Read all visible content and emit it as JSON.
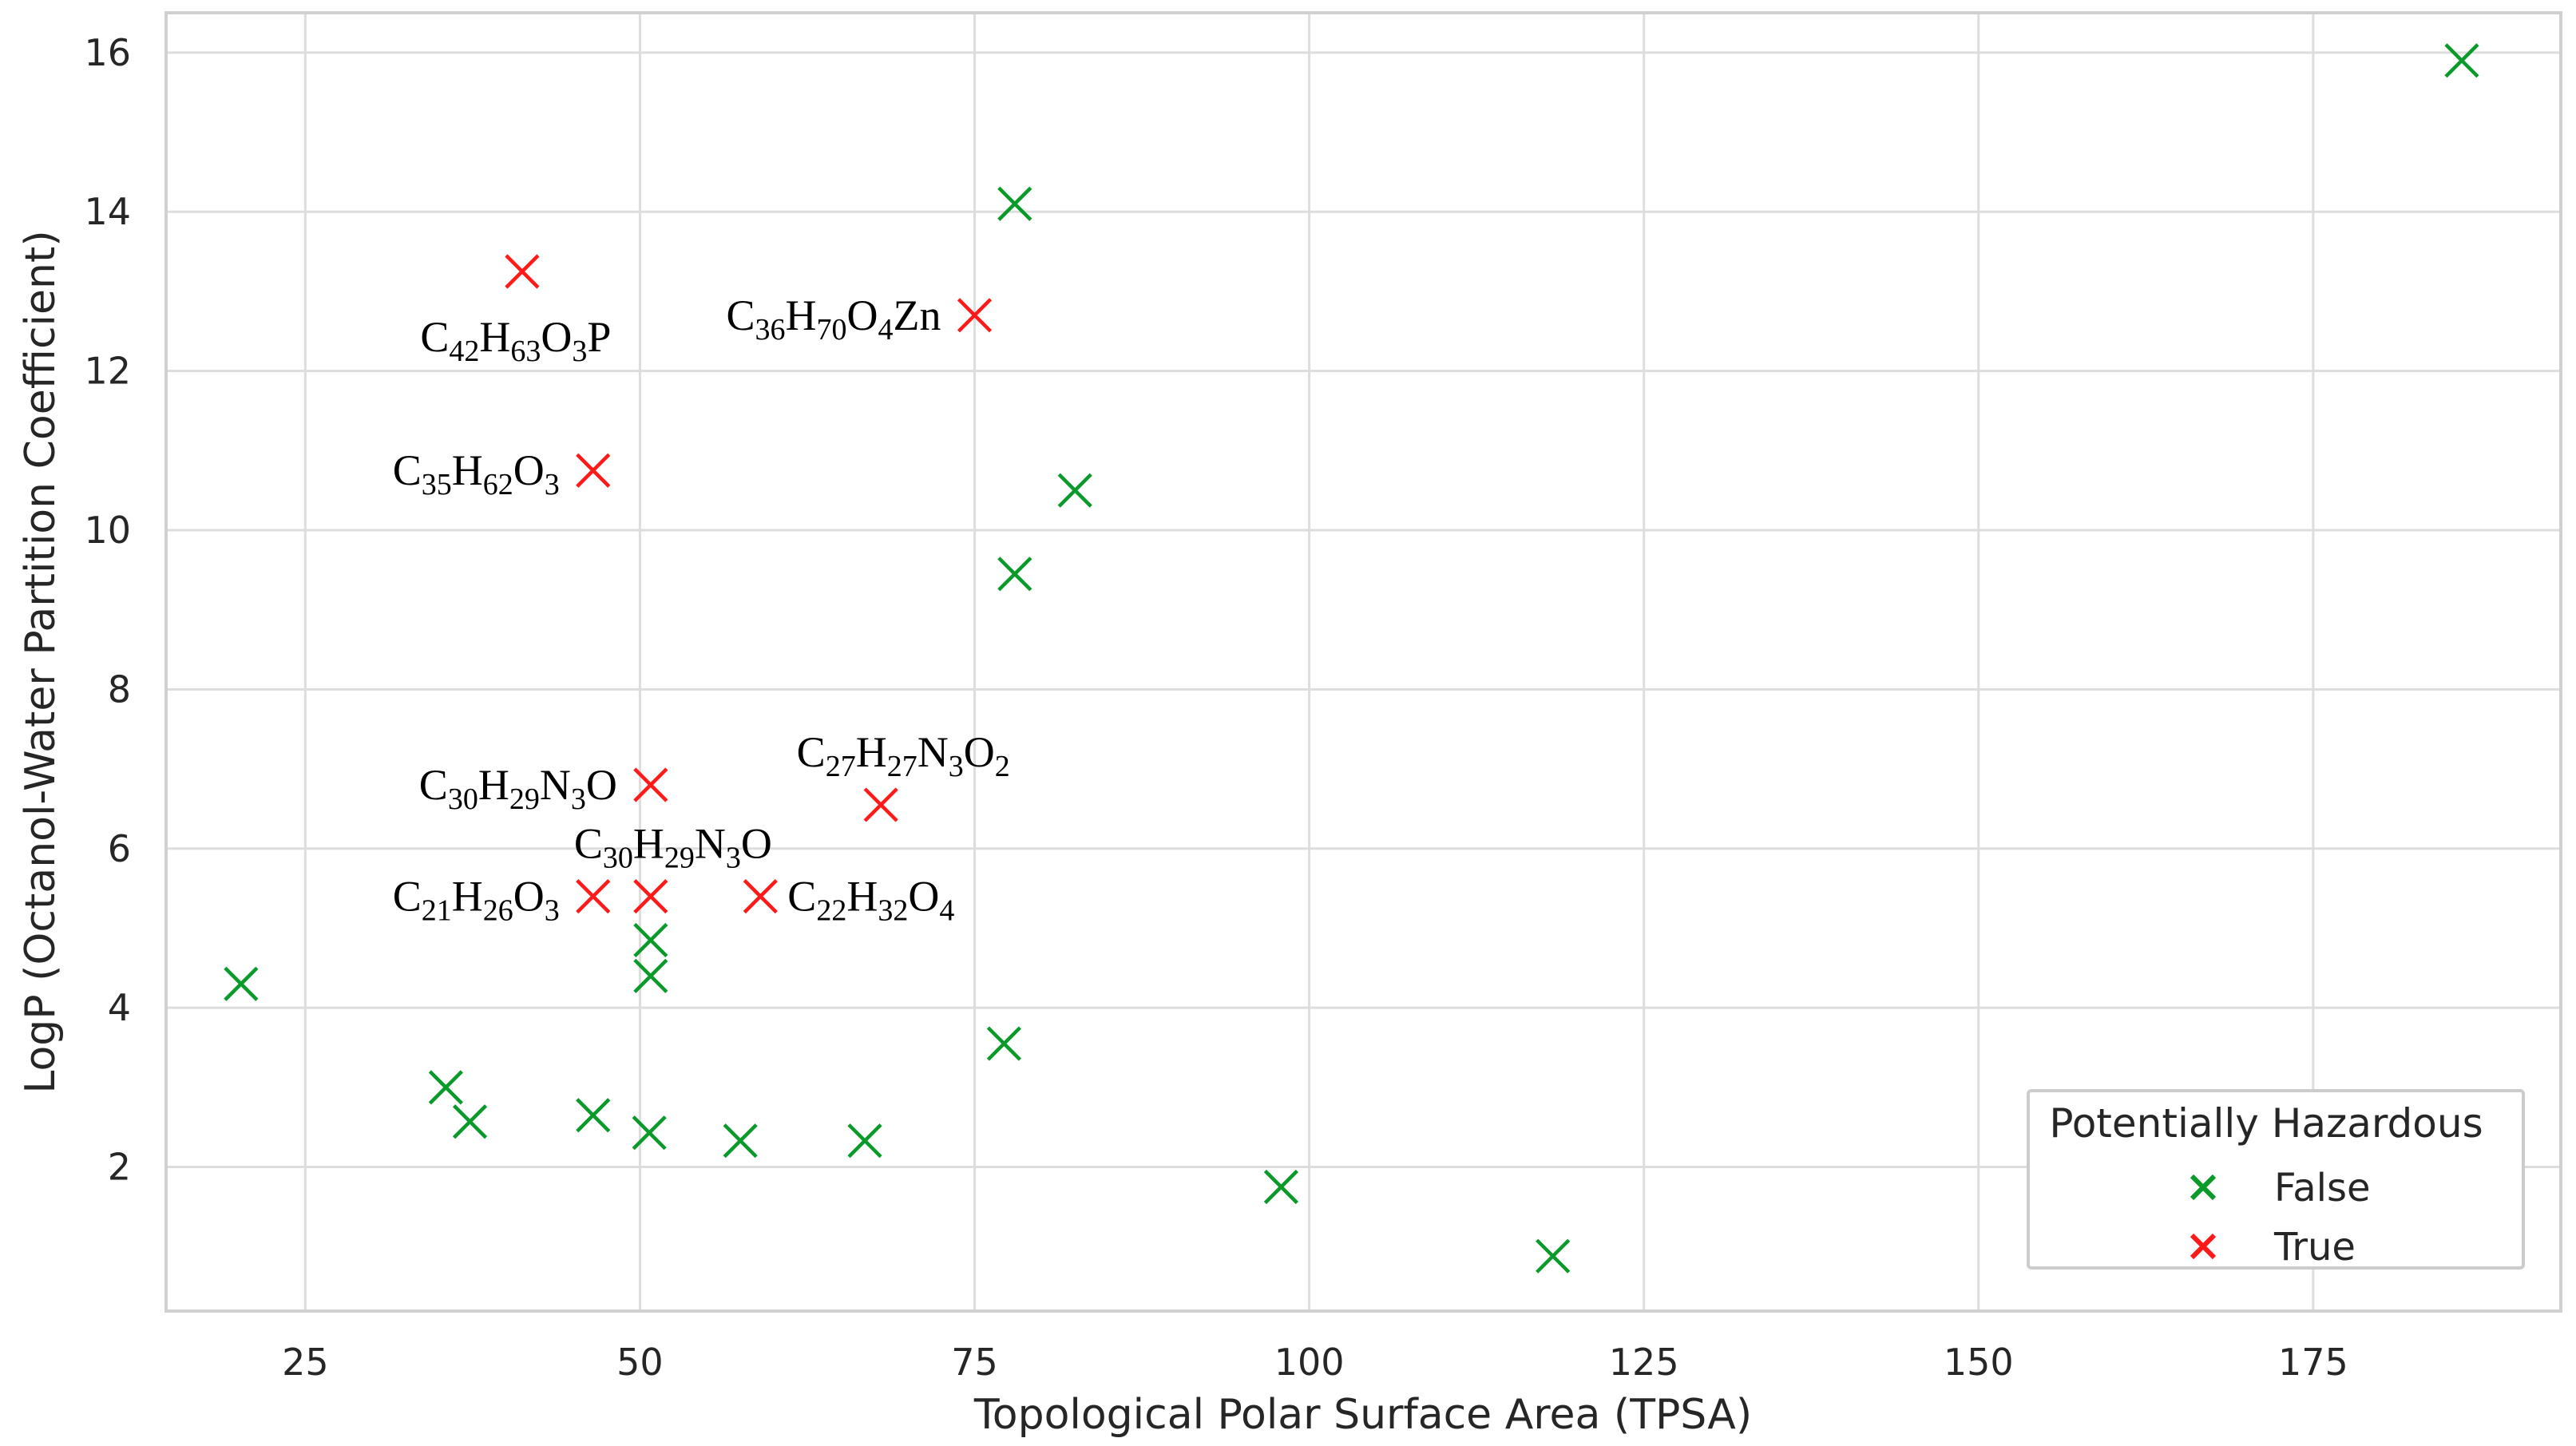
{
  "chart_data": {
    "type": "scatter",
    "xlabel": "Topological Polar Surface Area (TPSA)",
    "ylabel": "LogP (Octanol-Water Partition Coefficient)",
    "xlim": [
      14.6,
      193.5
    ],
    "ylim": [
      0.19,
      16.5
    ],
    "xticks": [
      25,
      50,
      75,
      100,
      125,
      150,
      175
    ],
    "yticks": [
      2,
      4,
      6,
      8,
      10,
      12,
      14,
      16
    ],
    "xtick_labels": [
      "25",
      "50",
      "75",
      "100",
      "125",
      "150",
      "175"
    ],
    "ytick_labels": [
      "2",
      "4",
      "6",
      "8",
      "10",
      "12",
      "14",
      "16"
    ],
    "grid": true,
    "marker": "x",
    "legend": {
      "title": "Potentially Hazardous",
      "location": "lower-right",
      "entries": [
        {
          "label": "False",
          "color": "#0a9a2a"
        },
        {
          "label": "True",
          "color": "#ff1a1a"
        }
      ]
    },
    "series": [
      {
        "name": "False",
        "color": "#0a9a2a",
        "points": [
          [
            20.2,
            4.3
          ],
          [
            35.5,
            3.0
          ],
          [
            37.3,
            2.57
          ],
          [
            46.5,
            2.65
          ],
          [
            50.7,
            2.43
          ],
          [
            57.5,
            2.33
          ],
          [
            66.8,
            2.33
          ],
          [
            50.8,
            4.85
          ],
          [
            50.8,
            4.4
          ],
          [
            77.2,
            3.55
          ],
          [
            78.0,
            9.45
          ],
          [
            78.0,
            14.1
          ],
          [
            82.5,
            10.5
          ],
          [
            97.9,
            1.75
          ],
          [
            118.2,
            0.88
          ],
          [
            186.1,
            15.9
          ]
        ]
      },
      {
        "name": "True",
        "color": "#ff1a1a",
        "points": [
          [
            41.2,
            13.25
          ],
          [
            46.5,
            10.75
          ],
          [
            75.0,
            12.7
          ],
          [
            50.8,
            6.8
          ],
          [
            68.0,
            6.55
          ],
          [
            46.5,
            5.4
          ],
          [
            50.8,
            5.4
          ],
          [
            59.0,
            5.4
          ]
        ],
        "annotations": [
          {
            "formula": [
              [
                "C",
                "42"
              ],
              [
                "H",
                "63"
              ],
              [
                "O",
                "3"
              ],
              [
                "P",
                ""
              ]
            ],
            "point_index": 0,
            "anchor": "below-left"
          },
          {
            "formula": [
              [
                "C",
                "35"
              ],
              [
                "H",
                "62"
              ],
              [
                "O",
                "3"
              ]
            ],
            "point_index": 1,
            "anchor": "left"
          },
          {
            "formula": [
              [
                "C",
                "36"
              ],
              [
                "H",
                "70"
              ],
              [
                "O",
                "4"
              ],
              [
                "Zn",
                ""
              ]
            ],
            "point_index": 2,
            "anchor": "left"
          },
          {
            "formula": [
              [
                "C",
                "30"
              ],
              [
                "H",
                "29"
              ],
              [
                "N",
                "3"
              ],
              [
                "O",
                ""
              ]
            ],
            "point_index": 3,
            "anchor": "left"
          },
          {
            "formula": [
              [
                "C",
                "27"
              ],
              [
                "H",
                "27"
              ],
              [
                "N",
                "3"
              ],
              [
                "O",
                "2"
              ]
            ],
            "point_index": 4,
            "anchor": "above"
          },
          {
            "formula": [
              [
                "C",
                "21"
              ],
              [
                "H",
                "26"
              ],
              [
                "O",
                "3"
              ]
            ],
            "point_index": 5,
            "anchor": "left"
          },
          {
            "formula": [
              [
                "C",
                "30"
              ],
              [
                "H",
                "29"
              ],
              [
                "N",
                "3"
              ],
              [
                "O",
                ""
              ]
            ],
            "point_index": 6,
            "anchor": "above-right"
          },
          {
            "formula": [
              [
                "C",
                "22"
              ],
              [
                "H",
                "32"
              ],
              [
                "O",
                "4"
              ]
            ],
            "point_index": 7,
            "anchor": "right"
          }
        ]
      }
    ]
  }
}
